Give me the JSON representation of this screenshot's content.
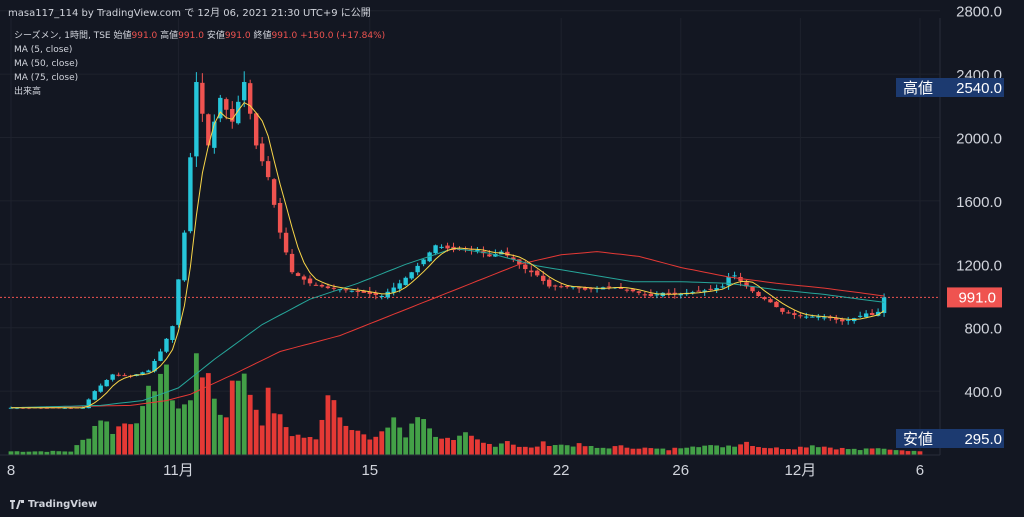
{
  "header": {
    "publish_line": "masa117_114 by TradingView.com で 12月 06, 2021 21:30 UTC+9 に公開"
  },
  "legend": {
    "symbol": "シーズメン, 1時間, TSE",
    "open_label": "始値",
    "open_value": "991.0",
    "high_label": "高値",
    "high_value": "991.0",
    "low_label": "安値",
    "low_value": "991.0",
    "close_label": "終値",
    "close_value": "991.0",
    "change": "+150.0 (+17.84%)",
    "ma5": "MA (5, close)",
    "ma50": "MA (50, close)",
    "ma75": "MA (75, close)",
    "volume": "出来高"
  },
  "badges": {
    "high_label": "高値",
    "high_value": "2540.0",
    "low_label": "安値",
    "low_value": "295.0",
    "last_value": "991.0"
  },
  "footer": {
    "brand": "TradingView"
  },
  "colors": {
    "background": "#131722",
    "up": "#26c6da",
    "down": "#ef5350",
    "vol_up": "#43a047",
    "vol_down": "#e53935",
    "ma5": "#f9d648",
    "ma50": "#26a69a",
    "ma75": "#e53935",
    "badge": "#1c3a70",
    "last": "#ef5350",
    "grid": "#1e222d"
  },
  "chart_data": {
    "type": "candlestick",
    "y_axis": {
      "position": "right",
      "min": 0,
      "max": 2900,
      "ticks": [
        "400.0",
        "800.0",
        "1200.0",
        "1600.0",
        "2000.0",
        "2400.0",
        "2800.0"
      ]
    },
    "x_axis": {
      "ticks": [
        {
          "label": "8",
          "bar": 0
        },
        {
          "label": "11月",
          "bar": 28
        },
        {
          "label": "15",
          "bar": 60
        },
        {
          "label": "22",
          "bar": 92
        },
        {
          "label": "26",
          "bar": 112
        },
        {
          "label": "12月",
          "bar": 132
        },
        {
          "label": "6",
          "bar": 152
        }
      ]
    },
    "last_price": 991.0,
    "all_time_high": 2540.0,
    "all_time_low": 295.0,
    "ohlc_anchors": [
      [
        0,
        295
      ],
      [
        12,
        295
      ],
      [
        14,
        400
      ],
      [
        17,
        505
      ],
      [
        20,
        495
      ],
      [
        23,
        530
      ],
      [
        25,
        650
      ],
      [
        27,
        810
      ],
      [
        29,
        1400
      ],
      [
        31,
        2350
      ],
      [
        33,
        1950
      ],
      [
        35,
        2250
      ],
      [
        37,
        2100
      ],
      [
        39,
        2350
      ],
      [
        41,
        1950
      ],
      [
        43,
        1750
      ],
      [
        45,
        1400
      ],
      [
        47,
        1150
      ],
      [
        50,
        1080
      ],
      [
        53,
        1050
      ],
      [
        56,
        1040
      ],
      [
        59,
        1020
      ],
      [
        62,
        1000
      ],
      [
        65,
        1080
      ],
      [
        67,
        1150
      ],
      [
        69,
        1230
      ],
      [
        71,
        1320
      ],
      [
        74,
        1290
      ],
      [
        76,
        1300
      ],
      [
        78,
        1290
      ],
      [
        80,
        1250
      ],
      [
        82,
        1280
      ],
      [
        84,
        1230
      ],
      [
        86,
        1170
      ],
      [
        88,
        1130
      ],
      [
        90,
        1060
      ],
      [
        92,
        1060
      ],
      [
        94,
        1060
      ],
      [
        96,
        1040
      ],
      [
        98,
        1050
      ],
      [
        100,
        1060
      ],
      [
        102,
        1050
      ],
      [
        105,
        1020
      ],
      [
        107,
        1000
      ],
      [
        109,
        1020
      ],
      [
        111,
        1010
      ],
      [
        113,
        1020
      ],
      [
        115,
        1030
      ],
      [
        117,
        1040
      ],
      [
        119,
        1060
      ],
      [
        120,
        1120
      ],
      [
        121,
        1130
      ],
      [
        123,
        1060
      ],
      [
        125,
        1000
      ],
      [
        127,
        960
      ],
      [
        129,
        900
      ],
      [
        131,
        880
      ],
      [
        133,
        870
      ],
      [
        135,
        870
      ],
      [
        137,
        860
      ],
      [
        139,
        840
      ],
      [
        141,
        860
      ],
      [
        143,
        890
      ],
      [
        144,
        880
      ],
      [
        145,
        900
      ],
      [
        146,
        991
      ]
    ],
    "volume_anchors": [
      [
        0,
        20
      ],
      [
        10,
        20
      ],
      [
        13,
        120
      ],
      [
        15,
        240
      ],
      [
        17,
        150
      ],
      [
        20,
        220
      ],
      [
        22,
        260
      ],
      [
        24,
        470
      ],
      [
        25,
        520
      ],
      [
        26,
        480
      ],
      [
        28,
        300
      ],
      [
        30,
        320
      ],
      [
        31,
        700
      ],
      [
        32,
        560
      ],
      [
        33,
        430
      ],
      [
        34,
        360
      ],
      [
        35,
        280
      ],
      [
        36,
        230
      ],
      [
        37,
        500
      ],
      [
        38,
        540
      ],
      [
        39,
        460
      ],
      [
        40,
        400
      ],
      [
        41,
        300
      ],
      [
        42,
        220
      ],
      [
        43,
        360
      ],
      [
        45,
        220
      ],
      [
        47,
        130
      ],
      [
        49,
        110
      ],
      [
        51,
        90
      ],
      [
        53,
        420
      ],
      [
        55,
        280
      ],
      [
        57,
        160
      ],
      [
        59,
        120
      ],
      [
        60,
        80
      ],
      [
        61,
        120
      ],
      [
        62,
        150
      ],
      [
        63,
        170
      ],
      [
        64,
        240
      ],
      [
        65,
        150
      ],
      [
        66,
        110
      ],
      [
        67,
        200
      ],
      [
        68,
        260
      ],
      [
        69,
        250
      ],
      [
        70,
        150
      ],
      [
        72,
        110
      ],
      [
        74,
        80
      ],
      [
        76,
        120
      ],
      [
        79,
        70
      ],
      [
        81,
        60
      ],
      [
        83,
        90
      ],
      [
        85,
        50
      ],
      [
        87,
        40
      ],
      [
        89,
        70
      ],
      [
        92,
        60
      ],
      [
        95,
        60
      ],
      [
        98,
        40
      ],
      [
        102,
        50
      ],
      [
        106,
        40
      ],
      [
        110,
        30
      ],
      [
        114,
        60
      ],
      [
        118,
        50
      ],
      [
        121,
        60
      ],
      [
        123,
        80
      ],
      [
        125,
        50
      ],
      [
        128,
        40
      ],
      [
        131,
        40
      ],
      [
        134,
        60
      ],
      [
        138,
        40
      ],
      [
        142,
        30
      ],
      [
        146,
        40
      ],
      [
        152,
        20
      ]
    ],
    "ma75_anchors": [
      [
        0,
        295
      ],
      [
        20,
        310
      ],
      [
        26,
        340
      ],
      [
        30,
        380
      ],
      [
        38,
        520
      ],
      [
        45,
        650
      ],
      [
        55,
        750
      ],
      [
        65,
        900
      ],
      [
        75,
        1050
      ],
      [
        85,
        1200
      ],
      [
        92,
        1260
      ],
      [
        98,
        1280
      ],
      [
        105,
        1250
      ],
      [
        112,
        1180
      ],
      [
        120,
        1120
      ],
      [
        128,
        1080
      ],
      [
        136,
        1050
      ],
      [
        146,
        1000
      ]
    ],
    "ma50_anchors": [
      [
        0,
        295
      ],
      [
        15,
        310
      ],
      [
        22,
        340
      ],
      [
        28,
        420
      ],
      [
        34,
        600
      ],
      [
        42,
        820
      ],
      [
        50,
        980
      ],
      [
        58,
        1080
      ],
      [
        66,
        1200
      ],
      [
        74,
        1300
      ],
      [
        80,
        1270
      ],
      [
        88,
        1190
      ],
      [
        96,
        1140
      ],
      [
        104,
        1090
      ],
      [
        112,
        1090
      ],
      [
        120,
        1080
      ],
      [
        128,
        1040
      ],
      [
        136,
        1010
      ],
      [
        146,
        960
      ]
    ]
  }
}
